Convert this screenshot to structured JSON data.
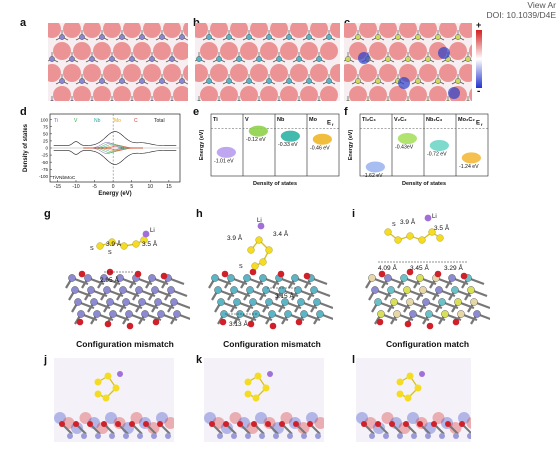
{
  "header": {
    "doi_line1": "View Ar",
    "doi_line2": "DOI: 10.1039/D4E"
  },
  "panels": {
    "a": "a",
    "b": "b",
    "c": "c",
    "d": "d",
    "e": "e",
    "f": "f",
    "g": "g",
    "h": "h",
    "i": "i",
    "j": "j",
    "k": "k",
    "l": "l"
  },
  "colorbar": {
    "plus": "+",
    "minus": "-"
  },
  "chart_data": [
    {
      "type": "line",
      "panel": "d",
      "title": "",
      "xlabel": "Energy (eV)",
      "ylabel": "Density of states",
      "xlim": [
        -17,
        18
      ],
      "ylim": [
        -120,
        120
      ],
      "xticks": [
        -15,
        -10,
        -5,
        0,
        5,
        10,
        15
      ],
      "yticks": [
        -100,
        -75,
        -50,
        -25,
        0,
        25,
        50,
        75,
        100
      ],
      "legend": [
        "Ti",
        "V",
        "Nb",
        "Mo",
        "C",
        "Total"
      ],
      "legend_colors": [
        "#7b5fb3",
        "#3aa64a",
        "#2fa7a0",
        "#e0a72a",
        "#d33a2f",
        "#222222"
      ],
      "annotation": "TiVNbMoC",
      "fermi_level": 0
    },
    {
      "type": "bar",
      "panel": "e",
      "ylabel": "Energy (eV)",
      "xlabel": "Density of states",
      "categories": [
        "Ti",
        "V",
        "Nb",
        "Mo"
      ],
      "values": [
        -1.01,
        -0.12,
        -0.33,
        -0.46
      ],
      "value_labels": [
        "-1.01 eV",
        "-0.12 eV",
        "-0.33 eV",
        "-0.46 eV"
      ],
      "colors": [
        "#b79cf0",
        "#8dd14a",
        "#2db3a4",
        "#f0b627"
      ],
      "fermi_label": "E",
      "fermi_sub": "f"
    },
    {
      "type": "bar",
      "panel": "f",
      "ylabel": "Energy (eV)",
      "xlabel": "Density of states",
      "categories": [
        "Ti₂C₃",
        "V₂C₂",
        "Nb₂C₃",
        "Mo₂C₂"
      ],
      "values": [
        -1.62,
        -0.43,
        -0.72,
        -1.24
      ],
      "value_labels": [
        "-1.62 eV",
        "-0.43eV",
        "-0.72 eV",
        "-1.24 eV"
      ],
      "colors": [
        "#9fb6f0",
        "#a8e060",
        "#6fd6c6",
        "#f4b93a"
      ],
      "fermi_label": "E",
      "fermi_sub": "f"
    }
  ],
  "structures": {
    "g": {
      "labels": [
        "Li",
        "S",
        "S",
        "3.9 Å",
        "3.5 Å",
        "2.95 Å"
      ],
      "caption": "Configuration mismatch"
    },
    "h": {
      "labels": [
        "Li",
        "S",
        "3.9 Å",
        "3.4 Å",
        "3.15 Å",
        "3.13 Å"
      ],
      "caption": "Configuration mismatch"
    },
    "i": {
      "labels": [
        "Li",
        "S",
        "3.9 Å",
        "3.5 Å",
        "4.09 Å",
        "3.45 Å",
        "3.29 Å"
      ],
      "caption": "Configuration match"
    }
  }
}
